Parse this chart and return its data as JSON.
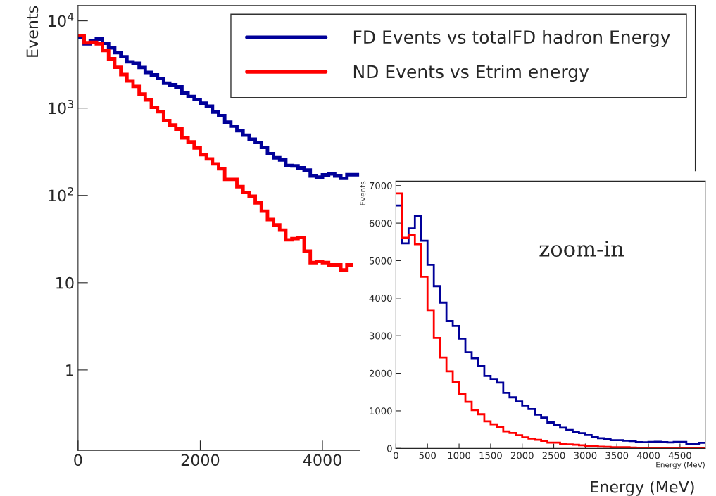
{
  "chart_data": [
    {
      "type": "histogram",
      "xlabel": "Energy (MeV)",
      "ylabel": "Events",
      "log": true,
      "legend": "top right",
      "bins": [
        0,
        100,
        200,
        300,
        400,
        500,
        600,
        700,
        800,
        900,
        1000,
        1100,
        1200,
        1300,
        1400,
        1500,
        1600,
        1700,
        1800,
        1900,
        2000,
        2100,
        2200,
        2300,
        2400,
        2500,
        2600,
        2700,
        2800,
        2900,
        3000,
        3100,
        3200,
        3300,
        3400,
        3500,
        3600,
        3700,
        3800,
        3900,
        4000,
        4100,
        4200,
        4300,
        4400,
        4500,
        4600
      ],
      "series": [
        {
          "name": "FD Events vs totalFD hadron Energy",
          "color": "#000099",
          "values": [
            6470,
            5460,
            5860,
            6190,
            5530,
            4890,
            4320,
            3880,
            3390,
            3260,
            2920,
            2560,
            2400,
            2190,
            1930,
            1850,
            1750,
            1480,
            1360,
            1250,
            1140,
            1050,
            900,
            820,
            690,
            620,
            550,
            490,
            440,
            405,
            355,
            300,
            270,
            255,
            220,
            218,
            207,
            195,
            167,
            162,
            172,
            177,
            167,
            157,
            173,
            173
          ]
        },
        {
          "name": "ND Events vs Etrim energy",
          "color": "#ff0000",
          "bins": [
            0,
            100,
            200,
            300,
            400,
            500,
            600,
            700,
            800,
            900,
            1000,
            1100,
            1200,
            1300,
            1400,
            1500,
            1600,
            1700,
            1800,
            1900,
            2000,
            2100,
            2200,
            2300,
            2400,
            2500,
            2600,
            2700,
            2800,
            2900,
            3000,
            3100,
            3200,
            3300,
            3400,
            3500,
            3600,
            3700,
            3800,
            3900,
            4000,
            4100,
            4200,
            4300,
            4400,
            4500
          ],
          "values": [
            6790,
            5610,
            5680,
            5440,
            4570,
            3680,
            2940,
            2420,
            2050,
            1770,
            1450,
            1240,
            1020,
            910,
            720,
            640,
            575,
            455,
            410,
            350,
            293,
            262,
            230,
            202,
            153,
            153,
            126,
            108,
            98,
            82,
            66,
            53,
            46,
            40,
            31,
            32,
            33,
            23,
            17,
            17.5,
            17,
            16,
            16,
            14,
            16
          ]
        }
      ],
      "xlim": [
        0,
        10100
      ],
      "xticks": [
        0,
        2000,
        4000
      ],
      "ylim": [
        0.12,
        15000
      ],
      "yticks": [
        {
          "value": 1,
          "label": "1"
        },
        {
          "value": 10,
          "label": "10"
        },
        {
          "value": 100,
          "label": "10$^{2}$"
        },
        {
          "value": 1000,
          "label": "10$^{3}$"
        },
        {
          "value": 10000,
          "label": "10$^{4}$"
        }
      ]
    },
    {
      "type": "histogram",
      "xlabel": "Energy (MeV)",
      "ylabel": "Events",
      "annotations": [
        "zoom-in"
      ],
      "bins": [
        0,
        100,
        200,
        300,
        400,
        500,
        600,
        700,
        800,
        900,
        1000,
        1100,
        1200,
        1300,
        1400,
        1500,
        1600,
        1700,
        1800,
        1900,
        2000,
        2100,
        2200,
        2300,
        2400,
        2500,
        2600,
        2700,
        2800,
        2900,
        3000,
        3100,
        3200,
        3300,
        3400,
        3500,
        3600,
        3700,
        3800,
        3900,
        4000,
        4100,
        4200,
        4300,
        4400,
        4500,
        4600,
        4700,
        4800,
        4900
      ],
      "series": [
        {
          "color": "#000099",
          "values": [
            6470,
            5460,
            5860,
            6190,
            5530,
            4890,
            4320,
            3880,
            3390,
            3260,
            2920,
            2560,
            2400,
            2190,
            1930,
            1850,
            1750,
            1480,
            1360,
            1250,
            1140,
            1050,
            900,
            820,
            690,
            620,
            550,
            490,
            440,
            405,
            355,
            300,
            270,
            255,
            220,
            218,
            207,
            195,
            167,
            162,
            172,
            177,
            167,
            157,
            173,
            173,
            110,
            110,
            150
          ]
        },
        {
          "color": "#ff0000",
          "values": [
            6790,
            5610,
            5680,
            5440,
            4570,
            3680,
            2940,
            2420,
            2050,
            1770,
            1450,
            1240,
            1020,
            910,
            720,
            640,
            575,
            455,
            410,
            350,
            293,
            262,
            230,
            202,
            153,
            153,
            126,
            108,
            98,
            82,
            66,
            53,
            46,
            40,
            31,
            32,
            33,
            23,
            17,
            17.5,
            17,
            16,
            16,
            14,
            16,
            15,
            15,
            15,
            15
          ]
        }
      ],
      "xlim": [
        0,
        4900
      ],
      "xticks": [
        0,
        500,
        1000,
        1500,
        2000,
        2500,
        3000,
        3500,
        4000,
        4500
      ],
      "ylim": [
        0,
        7120
      ],
      "yticks": [
        0,
        1000,
        2000,
        3000,
        4000,
        5000,
        6000,
        7000
      ]
    }
  ]
}
